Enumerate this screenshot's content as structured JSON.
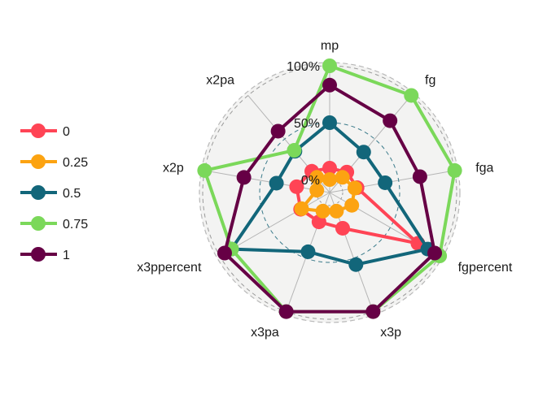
{
  "chart_data": {
    "type": "radar",
    "title": "",
    "axes": [
      "mp",
      "fg",
      "fga",
      "fgpercent",
      "x3p",
      "x3pa",
      "x3ppercent",
      "x2p",
      "x2pa"
    ],
    "grid_labels": [
      "0%",
      "50%",
      "100%"
    ],
    "ylim": [
      0,
      1
    ],
    "legend": {
      "position": "left",
      "entries": [
        "0",
        "0.25",
        "0.5",
        "0.75",
        "1"
      ]
    },
    "series": [
      {
        "name": "0",
        "color": "#FF4455",
        "values": [
          0.1,
          0.12,
          0.13,
          0.78,
          0.22,
          0.16,
          0.18,
          0.18,
          0.13
        ]
      },
      {
        "name": "0.25",
        "color": "#FCA311",
        "values": [
          0.0,
          0.06,
          0.11,
          0.11,
          0.06,
          0.06,
          0.17,
          0.0,
          0.06
        ]
      },
      {
        "name": "0.5",
        "color": "#12667A",
        "values": [
          0.5,
          0.35,
          0.38,
          0.88,
          0.56,
          0.44,
          0.88,
          0.36,
          0.36
        ]
      },
      {
        "name": "0.75",
        "color": "#7BD85A",
        "values": [
          1.0,
          1.0,
          1.0,
          1.0,
          1.0,
          1.0,
          0.88,
          1.0,
          0.37
        ]
      },
      {
        "name": "1",
        "color": "#660045",
        "values": [
          0.83,
          0.71,
          0.69,
          0.95,
          1.0,
          1.0,
          0.95,
          0.65,
          0.59
        ]
      }
    ]
  }
}
